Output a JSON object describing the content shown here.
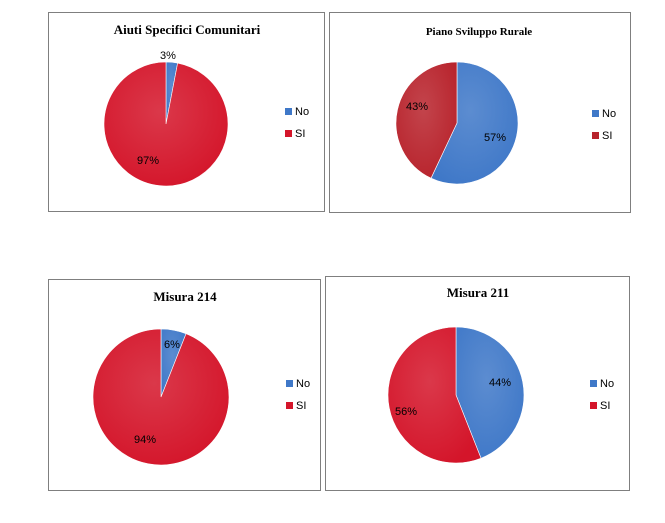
{
  "chart_data": [
    {
      "type": "pie",
      "title": "Aiuti Specifici Comunitari",
      "categories": [
        "No",
        "SI"
      ],
      "values": [
        3,
        97
      ],
      "labels": [
        "3%",
        "97%"
      ],
      "colors": [
        "#3f78c8",
        "#d4152a"
      ],
      "legend_position": "right"
    },
    {
      "type": "pie",
      "title": "Piano Sviluppo Rurale",
      "categories": [
        "No",
        "SI"
      ],
      "values": [
        57,
        43
      ],
      "labels": [
        "57%",
        "43%"
      ],
      "colors": [
        "#3f78c8",
        "#b8232c"
      ],
      "legend_position": "right"
    },
    {
      "type": "pie",
      "title": "Misura 214",
      "categories": [
        "No",
        "SI"
      ],
      "values": [
        6,
        94
      ],
      "labels": [
        "6%",
        "94%"
      ],
      "colors": [
        "#3f78c8",
        "#d4152a"
      ],
      "legend_position": "right"
    },
    {
      "type": "pie",
      "title": "Misura 211",
      "categories": [
        "No",
        "SI"
      ],
      "values": [
        44,
        56
      ],
      "labels": [
        "44%",
        "56%"
      ],
      "colors": [
        "#3f78c8",
        "#d4152a"
      ],
      "legend_position": "right"
    }
  ]
}
